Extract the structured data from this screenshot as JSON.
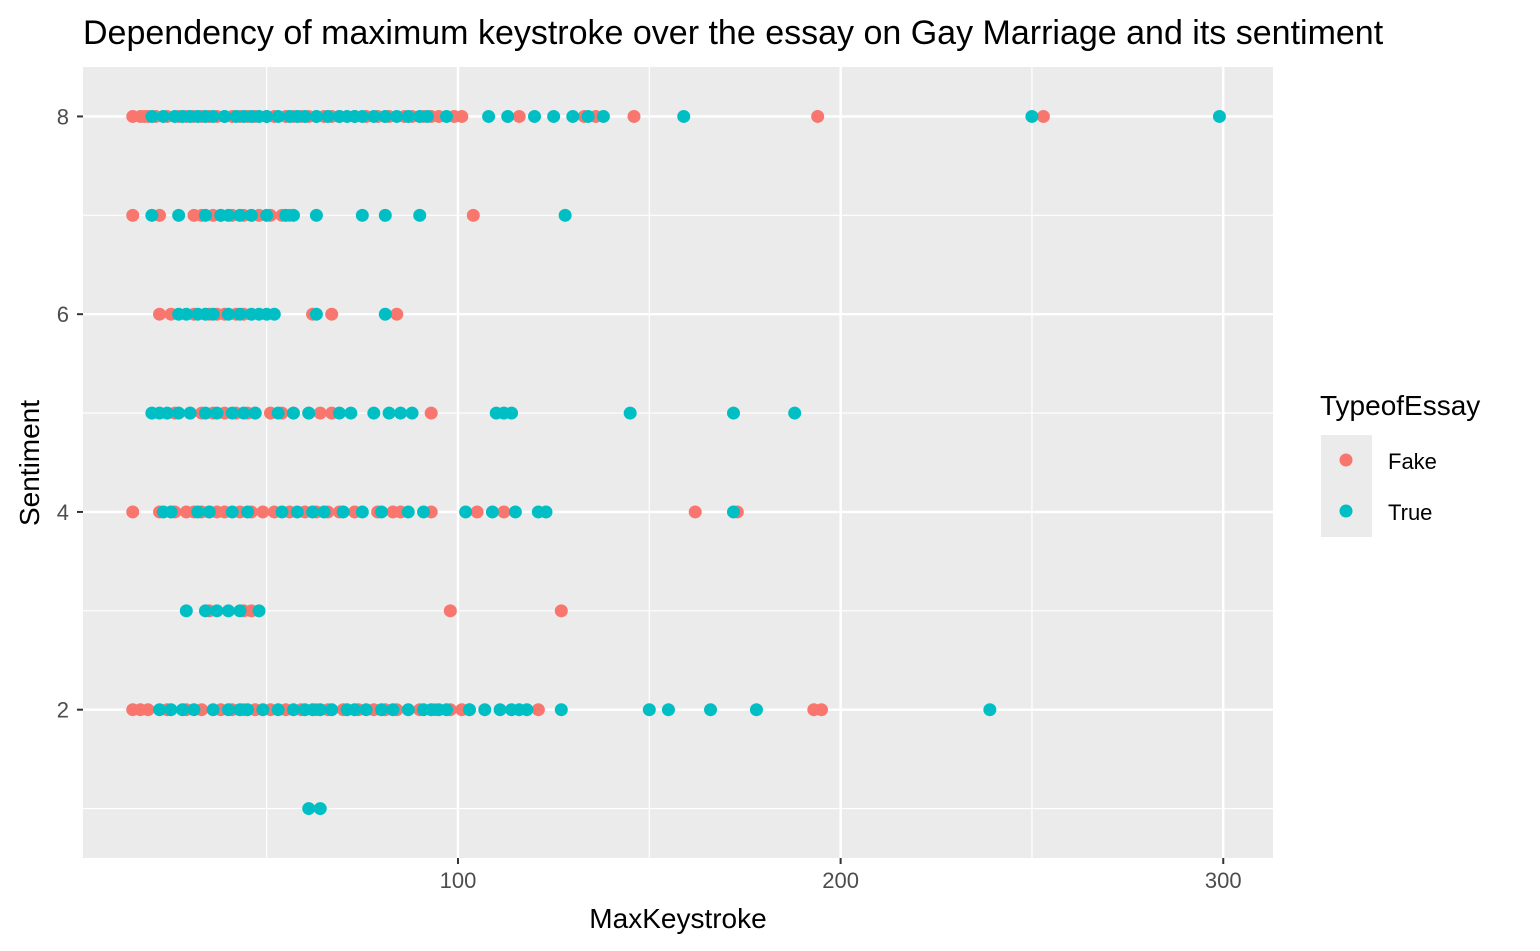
{
  "chart_data": {
    "type": "scatter",
    "title": "Dependency of maximum keystroke over the essay on Gay Marriage and its sentiment",
    "xlabel": "MaxKeystroke",
    "ylabel": "Sentiment",
    "xlim": [
      2,
      313
    ],
    "ylim": [
      0.5,
      8.5
    ],
    "xticks": [
      100,
      200,
      300
    ],
    "yticks": [
      2,
      4,
      6,
      8
    ],
    "grid": true,
    "legend": {
      "title": "TypeofEssay",
      "position": "right"
    },
    "series": [
      {
        "name": "Fake",
        "color": "#F8766D",
        "points": [
          [
            15,
            8
          ],
          [
            17,
            8
          ],
          [
            18,
            8
          ],
          [
            19,
            8
          ],
          [
            21,
            8
          ],
          [
            24,
            8
          ],
          [
            27,
            8
          ],
          [
            29,
            8
          ],
          [
            31,
            8
          ],
          [
            33,
            8
          ],
          [
            35,
            8
          ],
          [
            37,
            8
          ],
          [
            39,
            8
          ],
          [
            41,
            8
          ],
          [
            43,
            8
          ],
          [
            45,
            8
          ],
          [
            47,
            8
          ],
          [
            50,
            8
          ],
          [
            52,
            8
          ],
          [
            55,
            8
          ],
          [
            57,
            8
          ],
          [
            59,
            8
          ],
          [
            61,
            8
          ],
          [
            63,
            8
          ],
          [
            65,
            8
          ],
          [
            67,
            8
          ],
          [
            69,
            8
          ],
          [
            73,
            8
          ],
          [
            76,
            8
          ],
          [
            79,
            8
          ],
          [
            82,
            8
          ],
          [
            86,
            8
          ],
          [
            88,
            8
          ],
          [
            91,
            8
          ],
          [
            93,
            8
          ],
          [
            95,
            8
          ],
          [
            99,
            8
          ],
          [
            101,
            8
          ],
          [
            116,
            8
          ],
          [
            133,
            8
          ],
          [
            136,
            8
          ],
          [
            146,
            8
          ],
          [
            194,
            8
          ],
          [
            253,
            8
          ],
          [
            15,
            7
          ],
          [
            22,
            7
          ],
          [
            31,
            7
          ],
          [
            33,
            7
          ],
          [
            36,
            7
          ],
          [
            38,
            7
          ],
          [
            41,
            7
          ],
          [
            44,
            7
          ],
          [
            48,
            7
          ],
          [
            51,
            7
          ],
          [
            54,
            7
          ],
          [
            56,
            7
          ],
          [
            104,
            7
          ],
          [
            22,
            6
          ],
          [
            25,
            6
          ],
          [
            31,
            6
          ],
          [
            35,
            6
          ],
          [
            37,
            6
          ],
          [
            39,
            6
          ],
          [
            42,
            6
          ],
          [
            44,
            6
          ],
          [
            62,
            6
          ],
          [
            67,
            6
          ],
          [
            84,
            6
          ],
          [
            26,
            5
          ],
          [
            30,
            5
          ],
          [
            33,
            5
          ],
          [
            36,
            5
          ],
          [
            39,
            5
          ],
          [
            42,
            5
          ],
          [
            45,
            5
          ],
          [
            47,
            5
          ],
          [
            51,
            5
          ],
          [
            54,
            5
          ],
          [
            57,
            5
          ],
          [
            61,
            5
          ],
          [
            64,
            5
          ],
          [
            67,
            5
          ],
          [
            93,
            5
          ],
          [
            15,
            4
          ],
          [
            22,
            4
          ],
          [
            26,
            4
          ],
          [
            29,
            4
          ],
          [
            31,
            4
          ],
          [
            33,
            4
          ],
          [
            35,
            4
          ],
          [
            37,
            4
          ],
          [
            39,
            4
          ],
          [
            43,
            4
          ],
          [
            46,
            4
          ],
          [
            49,
            4
          ],
          [
            52,
            4
          ],
          [
            56,
            4
          ],
          [
            60,
            4
          ],
          [
            63,
            4
          ],
          [
            66,
            4
          ],
          [
            69,
            4
          ],
          [
            73,
            4
          ],
          [
            79,
            4
          ],
          [
            83,
            4
          ],
          [
            85,
            4
          ],
          [
            93,
            4
          ],
          [
            105,
            4
          ],
          [
            112,
            4
          ],
          [
            162,
            4
          ],
          [
            173,
            4
          ],
          [
            35,
            3
          ],
          [
            44,
            3
          ],
          [
            46,
            3
          ],
          [
            98,
            3
          ],
          [
            127,
            3
          ],
          [
            15,
            2
          ],
          [
            17,
            2
          ],
          [
            19,
            2
          ],
          [
            24,
            2
          ],
          [
            29,
            2
          ],
          [
            33,
            2
          ],
          [
            38,
            2
          ],
          [
            41,
            2
          ],
          [
            44,
            2
          ],
          [
            47,
            2
          ],
          [
            51,
            2
          ],
          [
            55,
            2
          ],
          [
            59,
            2
          ],
          [
            63,
            2
          ],
          [
            66,
            2
          ],
          [
            70,
            2
          ],
          [
            74,
            2
          ],
          [
            78,
            2
          ],
          [
            81,
            2
          ],
          [
            84,
            2
          ],
          [
            90,
            2
          ],
          [
            94,
            2
          ],
          [
            98,
            2
          ],
          [
            101,
            2
          ],
          [
            103,
            2
          ],
          [
            121,
            2
          ],
          [
            193,
            2
          ],
          [
            195,
            2
          ]
        ]
      },
      {
        "name": "True",
        "color": "#00BFC4",
        "points": [
          [
            20,
            8
          ],
          [
            23,
            8
          ],
          [
            26,
            8
          ],
          [
            28,
            8
          ],
          [
            30,
            8
          ],
          [
            32,
            8
          ],
          [
            34,
            8
          ],
          [
            36,
            8
          ],
          [
            39,
            8
          ],
          [
            42,
            8
          ],
          [
            44,
            8
          ],
          [
            46,
            8
          ],
          [
            48,
            8
          ],
          [
            50,
            8
          ],
          [
            53,
            8
          ],
          [
            56,
            8
          ],
          [
            58,
            8
          ],
          [
            60,
            8
          ],
          [
            63,
            8
          ],
          [
            66,
            8
          ],
          [
            69,
            8
          ],
          [
            71,
            8
          ],
          [
            73,
            8
          ],
          [
            75,
            8
          ],
          [
            78,
            8
          ],
          [
            81,
            8
          ],
          [
            84,
            8
          ],
          [
            87,
            8
          ],
          [
            90,
            8
          ],
          [
            92,
            8
          ],
          [
            97,
            8
          ],
          [
            108,
            8
          ],
          [
            113,
            8
          ],
          [
            120,
            8
          ],
          [
            125,
            8
          ],
          [
            130,
            8
          ],
          [
            134,
            8
          ],
          [
            138,
            8
          ],
          [
            159,
            8
          ],
          [
            250,
            8
          ],
          [
            299,
            8
          ],
          [
            20,
            7
          ],
          [
            27,
            7
          ],
          [
            34,
            7
          ],
          [
            38,
            7
          ],
          [
            40,
            7
          ],
          [
            43,
            7
          ],
          [
            46,
            7
          ],
          [
            50,
            7
          ],
          [
            55,
            7
          ],
          [
            57,
            7
          ],
          [
            63,
            7
          ],
          [
            75,
            7
          ],
          [
            81,
            7
          ],
          [
            90,
            7
          ],
          [
            128,
            7
          ],
          [
            27,
            6
          ],
          [
            29,
            6
          ],
          [
            32,
            6
          ],
          [
            34,
            6
          ],
          [
            36,
            6
          ],
          [
            40,
            6
          ],
          [
            43,
            6
          ],
          [
            46,
            6
          ],
          [
            48,
            6
          ],
          [
            50,
            6
          ],
          [
            52,
            6
          ],
          [
            63,
            6
          ],
          [
            81,
            6
          ],
          [
            20,
            5
          ],
          [
            22,
            5
          ],
          [
            24,
            5
          ],
          [
            27,
            5
          ],
          [
            30,
            5
          ],
          [
            34,
            5
          ],
          [
            37,
            5
          ],
          [
            41,
            5
          ],
          [
            44,
            5
          ],
          [
            47,
            5
          ],
          [
            53,
            5
          ],
          [
            57,
            5
          ],
          [
            61,
            5
          ],
          [
            69,
            5
          ],
          [
            72,
            5
          ],
          [
            78,
            5
          ],
          [
            82,
            5
          ],
          [
            85,
            5
          ],
          [
            88,
            5
          ],
          [
            110,
            5
          ],
          [
            112,
            5
          ],
          [
            114,
            5
          ],
          [
            145,
            5
          ],
          [
            172,
            5
          ],
          [
            188,
            5
          ],
          [
            23,
            4
          ],
          [
            25,
            4
          ],
          [
            32,
            4
          ],
          [
            35,
            4
          ],
          [
            41,
            4
          ],
          [
            45,
            4
          ],
          [
            54,
            4
          ],
          [
            58,
            4
          ],
          [
            62,
            4
          ],
          [
            65,
            4
          ],
          [
            70,
            4
          ],
          [
            75,
            4
          ],
          [
            80,
            4
          ],
          [
            87,
            4
          ],
          [
            91,
            4
          ],
          [
            102,
            4
          ],
          [
            109,
            4
          ],
          [
            115,
            4
          ],
          [
            121,
            4
          ],
          [
            123,
            4
          ],
          [
            172,
            4
          ],
          [
            29,
            3
          ],
          [
            34,
            3
          ],
          [
            37,
            3
          ],
          [
            40,
            3
          ],
          [
            43,
            3
          ],
          [
            48,
            3
          ],
          [
            22,
            2
          ],
          [
            25,
            2
          ],
          [
            28,
            2
          ],
          [
            31,
            2
          ],
          [
            36,
            2
          ],
          [
            40,
            2
          ],
          [
            43,
            2
          ],
          [
            45,
            2
          ],
          [
            49,
            2
          ],
          [
            53,
            2
          ],
          [
            57,
            2
          ],
          [
            60,
            2
          ],
          [
            62,
            2
          ],
          [
            64,
            2
          ],
          [
            67,
            2
          ],
          [
            71,
            2
          ],
          [
            73,
            2
          ],
          [
            76,
            2
          ],
          [
            80,
            2
          ],
          [
            83,
            2
          ],
          [
            87,
            2
          ],
          [
            91,
            2
          ],
          [
            93,
            2
          ],
          [
            95,
            2
          ],
          [
            97,
            2
          ],
          [
            103,
            2
          ],
          [
            107,
            2
          ],
          [
            111,
            2
          ],
          [
            114,
            2
          ],
          [
            116,
            2
          ],
          [
            118,
            2
          ],
          [
            127,
            2
          ],
          [
            150,
            2
          ],
          [
            155,
            2
          ],
          [
            166,
            2
          ],
          [
            178,
            2
          ],
          [
            239,
            2
          ],
          [
            61,
            1
          ],
          [
            64,
            1
          ]
        ]
      }
    ]
  }
}
